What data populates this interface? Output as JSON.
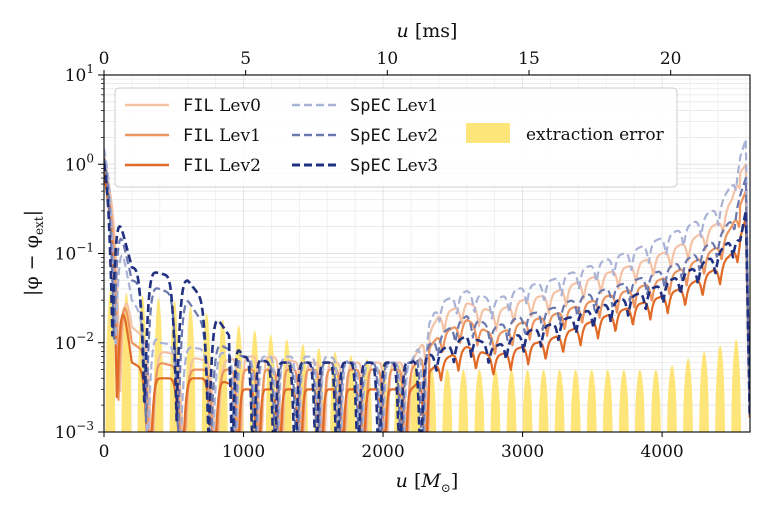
{
  "chart_data": {
    "type": "line",
    "title": "",
    "xlabel": "u [M_⊙]",
    "xlabel_parts": {
      "var": "u",
      "unit": "M",
      "sub": "⊙"
    },
    "top_xlabel": "u [ms]",
    "top_xlabel_parts": {
      "var": "u",
      "unit": "ms"
    },
    "ylabel": "|φ − φ_ext|",
    "ylabel_parts": {
      "pre": "|φ − φ",
      "sub": "ext",
      "post": "|"
    },
    "xlim": [
      0,
      4630
    ],
    "top_xlim_ms": [
      0,
      22.8
    ],
    "ylim": [
      0.001,
      10
    ],
    "yscale": "log",
    "grid": true,
    "legend_position": "top-left",
    "x_ticks": [
      0,
      1000,
      2000,
      3000,
      4000
    ],
    "x_tick_labels": [
      "0",
      "1000",
      "2000",
      "3000",
      "4000"
    ],
    "top_ticks_ms": [
      0,
      5,
      10,
      15,
      20
    ],
    "top_tick_labels": [
      "0",
      "5",
      "10",
      "15",
      "20"
    ],
    "y_ticks": [
      0.001,
      0.01,
      0.1,
      1,
      10
    ],
    "y_tick_labels": [
      {
        "base": "10",
        "exp": "−3"
      },
      {
        "base": "10",
        "exp": "−2"
      },
      {
        "base": "10",
        "exp": "−1"
      },
      {
        "base": "10",
        "exp": "0"
      },
      {
        "base": "10",
        "exp": "1"
      }
    ],
    "x": [
      0,
      200,
      400,
      600,
      800,
      1000,
      1200,
      1400,
      1600,
      1800,
      2000,
      2200,
      2400,
      2600,
      2800,
      3000,
      3200,
      3400,
      3600,
      3800,
      4000,
      4200,
      4400,
      4500,
      4560,
      4600,
      4630
    ],
    "series": [
      {
        "name": "FIL Lev0",
        "code": "FIL",
        "level": "Lev0",
        "color": "#f4c3a5",
        "dash": "solid",
        "width": 2.2,
        "values": [
          1.3,
          0.015,
          0.008,
          0.007,
          0.006,
          0.007,
          0.007,
          0.006,
          0.006,
          0.006,
          0.006,
          0.006,
          0.02,
          0.028,
          0.022,
          0.03,
          0.035,
          0.048,
          0.06,
          0.075,
          0.1,
          0.14,
          0.22,
          0.4,
          0.8,
          1.0,
          0.001
        ]
      },
      {
        "name": "FIL Lev1",
        "code": "FIL",
        "level": "Lev1",
        "color": "#ec955f",
        "dash": "solid",
        "width": 2.2,
        "values": [
          1.0,
          0.01,
          0.006,
          0.005,
          0.005,
          0.005,
          0.005,
          0.005,
          0.005,
          0.005,
          0.005,
          0.005,
          0.012,
          0.018,
          0.012,
          0.017,
          0.02,
          0.026,
          0.033,
          0.04,
          0.052,
          0.075,
          0.12,
          0.2,
          0.35,
          0.5,
          0.001
        ]
      },
      {
        "name": "FIL Lev2",
        "code": "FIL",
        "level": "Lev2",
        "color": "#e06a26",
        "dash": "solid",
        "width": 2.2,
        "values": [
          0.8,
          0.006,
          0.004,
          0.004,
          0.004,
          0.003,
          0.003,
          0.003,
          0.003,
          0.003,
          0.003,
          0.003,
          0.006,
          0.009,
          0.007,
          0.009,
          0.011,
          0.015,
          0.02,
          0.026,
          0.033,
          0.045,
          0.07,
          0.1,
          0.15,
          0.25,
          0.001
        ]
      },
      {
        "name": "SpEC Lev1",
        "code": "SpEC",
        "level": "Lev1",
        "color": "#aab3d6",
        "dash": "dash",
        "width": 2.2,
        "values": [
          1.5,
          0.03,
          0.01,
          0.009,
          0.008,
          0.007,
          0.007,
          0.007,
          0.007,
          0.006,
          0.006,
          0.006,
          0.028,
          0.038,
          0.03,
          0.042,
          0.05,
          0.065,
          0.085,
          0.11,
          0.15,
          0.21,
          0.33,
          0.6,
          1.2,
          1.9,
          0.001
        ]
      },
      {
        "name": "SpEC Lev2",
        "code": "SpEC",
        "level": "Lev2",
        "color": "#6b78ae",
        "dash": "dash",
        "width": 2.2,
        "values": [
          1.2,
          0.05,
          0.04,
          0.03,
          0.01,
          0.007,
          0.006,
          0.006,
          0.006,
          0.006,
          0.006,
          0.006,
          0.012,
          0.02,
          0.015,
          0.02,
          0.024,
          0.032,
          0.04,
          0.05,
          0.065,
          0.09,
          0.15,
          0.25,
          0.45,
          0.7,
          0.001
        ]
      },
      {
        "name": "SpEC Lev3",
        "code": "SpEC",
        "level": "Lev3",
        "color": "#1f3180",
        "dash": "dash",
        "width": 2.6,
        "values": [
          1.1,
          0.07,
          0.06,
          0.05,
          0.02,
          0.007,
          0.006,
          0.006,
          0.006,
          0.006,
          0.006,
          0.006,
          0.008,
          0.012,
          0.009,
          0.013,
          0.016,
          0.021,
          0.027,
          0.034,
          0.045,
          0.065,
          0.1,
          0.15,
          0.14,
          0.3,
          0.001
        ]
      }
    ],
    "band": {
      "name": "extraction error",
      "color": "#fde57a",
      "x": [
        0,
        500,
        1000,
        1500,
        2000,
        2500,
        3000,
        3500,
        4000,
        4300,
        4600
      ],
      "values": [
        0.04,
        0.03,
        0.015,
        0.009,
        0.006,
        0.005,
        0.005,
        0.005,
        0.005,
        0.008,
        0.012
      ]
    }
  }
}
